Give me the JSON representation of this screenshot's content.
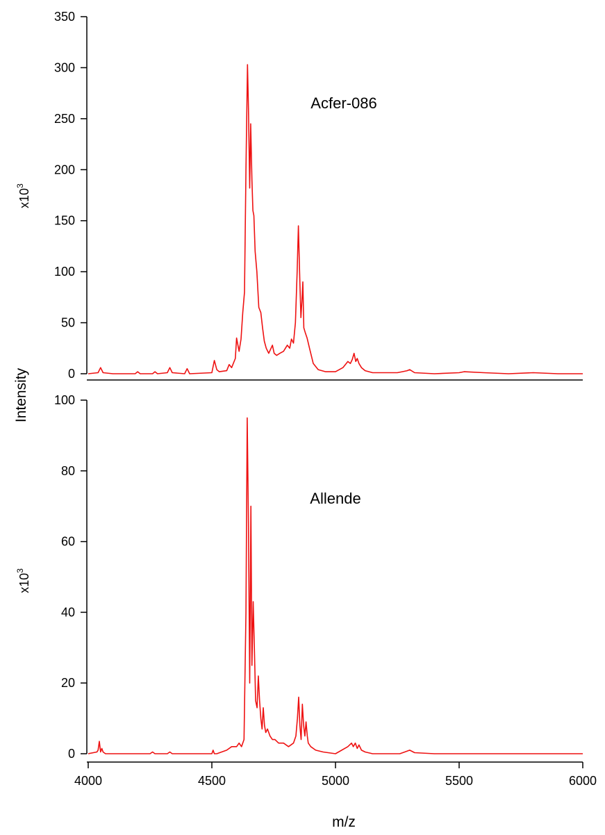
{
  "chart_data": {
    "type": "line",
    "xlabel": "m/z",
    "ylabel": "Intensity",
    "xlim": [
      4000,
      6000
    ],
    "xticks": [
      4000,
      4500,
      5000,
      5500,
      6000
    ],
    "line_color": "#ee1111",
    "panels": [
      {
        "label": "Acfer-086",
        "multiplier": "x10",
        "multiplier_exp": "3",
        "ylim": [
          0,
          350
        ],
        "yticks": [
          0,
          50,
          100,
          150,
          200,
          250,
          300,
          350
        ],
        "series": {
          "x": [
            4000,
            4040,
            4050,
            4060,
            4100,
            4190,
            4200,
            4210,
            4260,
            4270,
            4280,
            4320,
            4330,
            4340,
            4390,
            4400,
            4410,
            4500,
            4510,
            4520,
            4530,
            4560,
            4570,
            4580,
            4595,
            4600,
            4610,
            4618,
            4625,
            4632,
            4638,
            4644,
            4648,
            4653,
            4657,
            4662,
            4666,
            4670,
            4675,
            4682,
            4690,
            4698,
            4705,
            4712,
            4720,
            4730,
            4745,
            4752,
            4762,
            4775,
            4790,
            4805,
            4815,
            4822,
            4830,
            4838,
            4845,
            4850,
            4856,
            4860,
            4864,
            4868,
            4872,
            4878,
            4885,
            4895,
            4910,
            4930,
            4960,
            5000,
            5030,
            5050,
            5060,
            5068,
            5075,
            5082,
            5088,
            5095,
            5105,
            5120,
            5150,
            5200,
            5250,
            5270,
            5290,
            5300,
            5320,
            5400,
            5500,
            5520,
            5600,
            5700,
            5800,
            5900,
            6000
          ],
          "y": [
            0,
            1,
            6,
            1,
            0,
            0,
            2,
            0,
            0,
            2,
            0,
            1,
            6,
            1,
            0,
            5,
            0,
            1,
            13,
            4,
            2,
            3,
            9,
            6,
            15,
            35,
            22,
            34,
            60,
            80,
            200,
            303,
            260,
            182,
            245,
            190,
            160,
            155,
            120,
            100,
            65,
            60,
            45,
            32,
            25,
            20,
            28,
            20,
            18,
            20,
            22,
            28,
            25,
            34,
            30,
            50,
            100,
            145,
            90,
            55,
            70,
            90,
            45,
            40,
            35,
            25,
            10,
            4,
            2,
            2,
            6,
            12,
            10,
            14,
            20,
            12,
            15,
            10,
            6,
            3,
            1,
            1,
            1,
            2,
            3,
            4,
            1,
            0,
            1,
            2,
            1,
            0,
            1,
            0,
            0
          ]
        }
      },
      {
        "label": "Allende",
        "multiplier": "x10",
        "multiplier_exp": "3",
        "ylim": [
          0,
          100
        ],
        "yticks": [
          0,
          20,
          40,
          60,
          80,
          100
        ],
        "series": {
          "x": [
            4000,
            4035,
            4040,
            4045,
            4050,
            4055,
            4060,
            4070,
            4100,
            4200,
            4250,
            4260,
            4270,
            4320,
            4330,
            4340,
            4400,
            4500,
            4505,
            4510,
            4520,
            4560,
            4580,
            4600,
            4610,
            4620,
            4630,
            4638,
            4643,
            4648,
            4653,
            4658,
            4662,
            4667,
            4672,
            4677,
            4683,
            4688,
            4693,
            4698,
            4703,
            4708,
            4713,
            4718,
            4725,
            4735,
            4745,
            4755,
            4770,
            4790,
            4810,
            4830,
            4840,
            4846,
            4851,
            4856,
            4861,
            4866,
            4871,
            4876,
            4881,
            4886,
            4890,
            4900,
            4920,
            4950,
            5000,
            5050,
            5065,
            5072,
            5080,
            5088,
            5095,
            5105,
            5120,
            5150,
            5200,
            5260,
            5280,
            5300,
            5320,
            5400,
            5500,
            5600,
            5700,
            5800,
            5900,
            6000
          ],
          "y": [
            0,
            0.5,
            1,
            3.5,
            0.5,
            1.5,
            0.5,
            0,
            0,
            0,
            0,
            0.5,
            0,
            0,
            0.5,
            0,
            0,
            0,
            1,
            0,
            0,
            1,
            2,
            2,
            3,
            2,
            4,
            40,
            95,
            65,
            20,
            70,
            25,
            43,
            30,
            15,
            13,
            22,
            15,
            10,
            7,
            13,
            8,
            6,
            7,
            5,
            4,
            4,
            3,
            3,
            2,
            3,
            5,
            10,
            16,
            8,
            4,
            14,
            8,
            5,
            9,
            5,
            3,
            2,
            1,
            0.5,
            0,
            2,
            3,
            2,
            3,
            1.5,
            2.5,
            1,
            0.5,
            0,
            0,
            0,
            0.5,
            1,
            0.3,
            0,
            0,
            0,
            0,
            0,
            0,
            0
          ]
        }
      }
    ]
  }
}
